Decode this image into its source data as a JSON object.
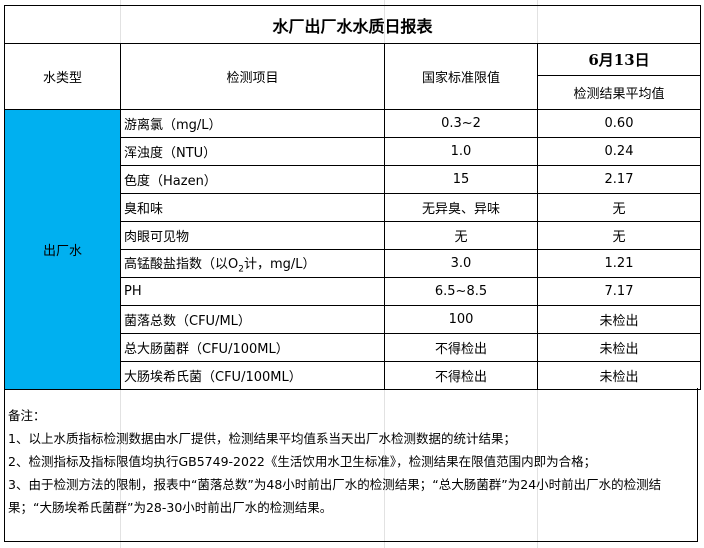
{
  "title": "水厂出厂水水质日报表",
  "header": {
    "water_type": "水类型",
    "item": "检测项目",
    "standard": "国家标准限值",
    "date": "6月13日",
    "result": "检测结果平均值"
  },
  "water_type": "出厂水",
  "colors": {
    "water_type_bg": "#00b0f0"
  },
  "rows": [
    {
      "item": "游离氯（mg/L）",
      "standard": "0.3~2",
      "result": "0.60"
    },
    {
      "item": "浑浊度（NTU）",
      "standard": "1.0",
      "result": "0.24"
    },
    {
      "item": "色度（Hazen）",
      "standard": "15",
      "result": "2.17"
    },
    {
      "item": "臭和味",
      "standard": "无异臭、异味",
      "result": "无"
    },
    {
      "item": "肉眼可见物",
      "standard": "无",
      "result": "无"
    },
    {
      "item_pre": "高锰酸盐指数（以O",
      "item_sub": "2",
      "item_post": "计，mg/L）",
      "standard": "3.0",
      "result": "1.21"
    },
    {
      "item": "PH",
      "standard": "6.5~8.5",
      "result": "7.17"
    },
    {
      "item": "菌落总数（CFU/ML）",
      "standard": "100",
      "result": "未检出"
    },
    {
      "item": "总大肠菌群（CFU/100ML）",
      "standard": "不得检出",
      "result": "未检出"
    },
    {
      "item": "大肠埃希氏菌（CFU/100ML）",
      "standard": "不得检出",
      "result": "未检出"
    }
  ],
  "notes": [
    "备注：",
    "1、以上水质指标检测数据由水厂提供，检测结果平均值系当天出厂水检测数据的统计结果；",
    "2、检测指标及指标限值均执行GB5749-2022《生活饮用水卫生标准》，检测结果在限值范围内即为合格；",
    "3、由于检测方法的限制，报表中“菌落总数”为48小时前出厂水的检测结果；“总大肠菌群”为24小时前出厂水的检测结果；“大肠埃希氏菌群”为28-30小时前出厂水的检测结果。"
  ]
}
